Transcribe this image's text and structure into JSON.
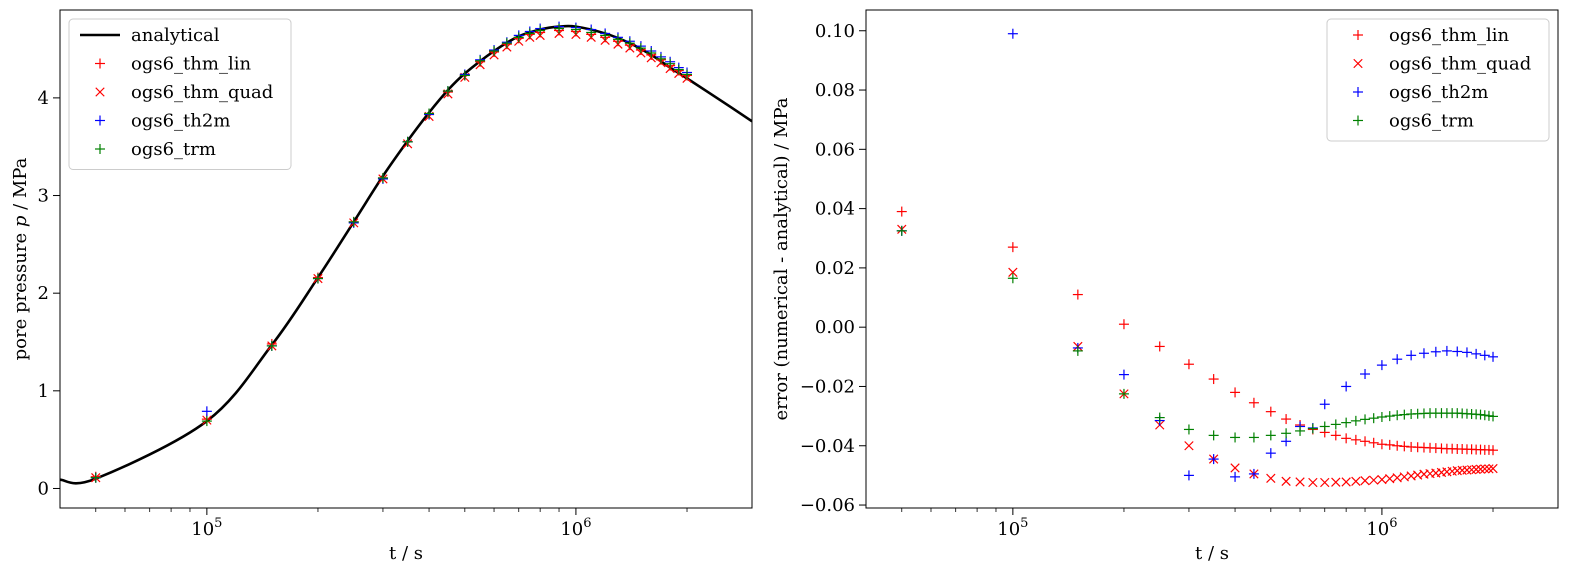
{
  "chart_data": [
    {
      "type": "scatter",
      "xlabel": "t / s",
      "ylabel": "pore pressure p / MPa",
      "ylabel_parts": [
        "pore pressure ",
        "p",
        " / MPa"
      ],
      "xscale": "log",
      "xlim": [
        40000,
        3000000
      ],
      "ylim": [
        -0.2,
        4.9
      ],
      "x_ticks": [
        {
          "value": 100000,
          "base": "10",
          "exp": "5"
        },
        {
          "value": 1000000,
          "base": "10",
          "exp": "6"
        }
      ],
      "y_ticks": [
        {
          "value": 0,
          "label": "0"
        },
        {
          "value": 1,
          "label": "1"
        },
        {
          "value": 2,
          "label": "2"
        },
        {
          "value": 3,
          "label": "3"
        },
        {
          "value": 4,
          "label": "4"
        }
      ],
      "legend_position": "upper-left",
      "analytical": {
        "name": "analytical",
        "color": "#000000",
        "x": [
          40000,
          50000,
          100000,
          150000,
          200000,
          250000,
          300000,
          350000,
          400000,
          450000,
          500000,
          600000,
          700000,
          800000,
          900000,
          1000000,
          1200000,
          1400000,
          1600000,
          1800000,
          2000000,
          2500000,
          3000000
        ],
        "y": [
          0.09,
          0.1,
          0.69,
          1.47,
          2.16,
          2.73,
          3.2,
          3.56,
          3.85,
          4.08,
          4.25,
          4.48,
          4.63,
          4.7,
          4.73,
          4.73,
          4.66,
          4.56,
          4.44,
          4.31,
          4.2,
          3.96,
          3.76
        ]
      },
      "series": [
        {
          "name": "ogs6_thm_lin",
          "marker": "+",
          "color": "#ff0000",
          "x": [
            50000,
            100000,
            150000,
            200000,
            250000,
            300000,
            350000,
            400000,
            450000,
            500000,
            550000,
            600000,
            650000,
            700000,
            750000,
            800000,
            900000,
            1000000,
            1100000,
            1200000,
            1300000,
            1400000,
            1500000,
            1600000,
            1700000,
            1800000,
            1900000,
            2000000
          ],
          "y": [
            0.12,
            0.71,
            1.48,
            2.16,
            2.73,
            3.18,
            3.55,
            3.83,
            4.06,
            4.23,
            4.37,
            4.47,
            4.55,
            4.61,
            4.65,
            4.67,
            4.69,
            4.68,
            4.65,
            4.62,
            4.58,
            4.54,
            4.49,
            4.44,
            4.39,
            4.33,
            4.28,
            4.23
          ]
        },
        {
          "name": "ogs6_thm_quad",
          "marker": "x",
          "color": "#ff0000",
          "x": [
            50000,
            100000,
            150000,
            200000,
            250000,
            300000,
            350000,
            400000,
            450000,
            500000,
            550000,
            600000,
            650000,
            700000,
            750000,
            800000,
            900000,
            1000000,
            1100000,
            1200000,
            1300000,
            1400000,
            1500000,
            1600000,
            1700000,
            1800000,
            1900000,
            2000000
          ],
          "y": [
            0.11,
            0.7,
            1.46,
            2.15,
            2.72,
            3.17,
            3.53,
            3.81,
            4.04,
            4.21,
            4.34,
            4.44,
            4.52,
            4.58,
            4.62,
            4.64,
            4.66,
            4.65,
            4.62,
            4.59,
            4.55,
            4.51,
            4.46,
            4.41,
            4.36,
            4.3,
            4.25,
            4.2
          ]
        },
        {
          "name": "ogs6_th2m",
          "marker": "+",
          "color": "#0000ff",
          "x": [
            50000,
            100000,
            150000,
            200000,
            250000,
            300000,
            350000,
            400000,
            450000,
            500000,
            550000,
            600000,
            650000,
            700000,
            750000,
            800000,
            900000,
            1000000,
            1100000,
            1200000,
            1300000,
            1400000,
            1500000,
            1600000,
            1700000,
            1800000,
            1900000,
            2000000
          ],
          "y": [
            0.11,
            0.79,
            1.46,
            2.15,
            2.72,
            3.17,
            3.55,
            3.83,
            4.07,
            4.24,
            4.39,
            4.49,
            4.57,
            4.64,
            4.68,
            4.71,
            4.73,
            4.72,
            4.7,
            4.66,
            4.62,
            4.58,
            4.53,
            4.48,
            4.42,
            4.37,
            4.31,
            4.26
          ]
        },
        {
          "name": "ogs6_trm",
          "marker": "+",
          "color": "#008000",
          "x": [
            50000,
            100000,
            150000,
            200000,
            250000,
            300000,
            350000,
            400000,
            450000,
            500000,
            550000,
            600000,
            650000,
            700000,
            750000,
            800000,
            900000,
            1000000,
            1100000,
            1200000,
            1300000,
            1400000,
            1500000,
            1600000,
            1700000,
            1800000,
            1900000,
            2000000
          ],
          "y": [
            0.11,
            0.69,
            1.46,
            2.15,
            2.73,
            3.18,
            3.55,
            3.84,
            4.07,
            4.23,
            4.38,
            4.48,
            4.56,
            4.62,
            4.66,
            4.69,
            4.71,
            4.7,
            4.67,
            4.64,
            4.6,
            4.56,
            4.51,
            4.46,
            4.4,
            4.35,
            4.29,
            4.24
          ]
        }
      ]
    },
    {
      "type": "scatter",
      "xlabel": "t / s",
      "ylabel": "error (numerical - analytical) / MPa",
      "xscale": "log",
      "xlim": [
        40000,
        3000000
      ],
      "ylim": [
        -0.061,
        0.107
      ],
      "x_ticks": [
        {
          "value": 100000,
          "base": "10",
          "exp": "5"
        },
        {
          "value": 1000000,
          "base": "10",
          "exp": "6"
        }
      ],
      "y_ticks": [
        {
          "value": -0.06,
          "label": "−0.06"
        },
        {
          "value": -0.04,
          "label": "−0.04"
        },
        {
          "value": -0.02,
          "label": "−0.02"
        },
        {
          "value": 0,
          "label": "0.00"
        },
        {
          "value": 0.02,
          "label": "0.02"
        },
        {
          "value": 0.04,
          "label": "0.04"
        },
        {
          "value": 0.06,
          "label": "0.06"
        },
        {
          "value": 0.08,
          "label": "0.08"
        },
        {
          "value": 0.1,
          "label": "0.10"
        }
      ],
      "legend_position": "upper-right",
      "series": [
        {
          "name": "ogs6_thm_lin",
          "marker": "+",
          "color": "#ff0000",
          "x": [
            50000,
            100000,
            150000,
            200000,
            250000,
            300000,
            350000,
            400000,
            450000,
            500000,
            550000,
            600000,
            650000,
            700000,
            750000,
            800000,
            850000,
            900000,
            950000,
            1000000,
            1050000,
            1100000,
            1150000,
            1200000,
            1250000,
            1300000,
            1350000,
            1400000,
            1450000,
            1500000,
            1550000,
            1600000,
            1650000,
            1700000,
            1750000,
            1800000,
            1850000,
            1900000,
            1950000,
            2000000
          ],
          "y": [
            0.039,
            0.027,
            0.011,
            0.001,
            -0.0065,
            -0.0125,
            -0.0175,
            -0.022,
            -0.0255,
            -0.0285,
            -0.031,
            -0.033,
            -0.0345,
            -0.0355,
            -0.0365,
            -0.0375,
            -0.038,
            -0.0385,
            -0.039,
            -0.0395,
            -0.0397,
            -0.04,
            -0.0402,
            -0.0404,
            -0.0405,
            -0.0406,
            -0.0407,
            -0.0408,
            -0.0409,
            -0.041,
            -0.041,
            -0.0411,
            -0.0411,
            -0.0412,
            -0.0412,
            -0.0413,
            -0.0413,
            -0.0414,
            -0.0414,
            -0.0415
          ]
        },
        {
          "name": "ogs6_thm_quad",
          "marker": "x",
          "color": "#ff0000",
          "x": [
            50000,
            100000,
            150000,
            200000,
            250000,
            300000,
            350000,
            400000,
            450000,
            500000,
            550000,
            600000,
            650000,
            700000,
            750000,
            800000,
            850000,
            900000,
            950000,
            1000000,
            1050000,
            1100000,
            1150000,
            1200000,
            1250000,
            1300000,
            1350000,
            1400000,
            1450000,
            1500000,
            1550000,
            1600000,
            1650000,
            1700000,
            1750000,
            1800000,
            1850000,
            1900000,
            1950000,
            2000000
          ],
          "y": [
            0.033,
            0.0185,
            -0.0065,
            -0.0225,
            -0.033,
            -0.04,
            -0.0445,
            -0.0475,
            -0.0495,
            -0.051,
            -0.052,
            -0.0522,
            -0.0524,
            -0.0524,
            -0.0523,
            -0.0522,
            -0.052,
            -0.0518,
            -0.0516,
            -0.0514,
            -0.0511,
            -0.0508,
            -0.0505,
            -0.0502,
            -0.0499,
            -0.0496,
            -0.0494,
            -0.0492,
            -0.049,
            -0.0488,
            -0.0486,
            -0.0484,
            -0.0483,
            -0.0482,
            -0.0481,
            -0.048,
            -0.0479,
            -0.0478,
            -0.0478,
            -0.0477
          ]
        },
        {
          "name": "ogs6_th2m",
          "marker": "+",
          "color": "#0000ff",
          "x": [
            50000,
            100000,
            150000,
            200000,
            250000,
            300000,
            350000,
            400000,
            450000,
            500000,
            550000,
            600000,
            650000,
            700000,
            800000,
            900000,
            1000000,
            1100000,
            1200000,
            1300000,
            1400000,
            1500000,
            1600000,
            1700000,
            1800000,
            1900000,
            2000000
          ],
          "y": [
            0.0325,
            0.099,
            -0.007,
            -0.016,
            -0.0315,
            -0.05,
            -0.0445,
            -0.0505,
            -0.0495,
            -0.0425,
            -0.0385,
            -0.0335,
            -0.034,
            -0.026,
            -0.02,
            -0.0158,
            -0.0128,
            -0.0108,
            -0.0095,
            -0.0088,
            -0.0083,
            -0.008,
            -0.0082,
            -0.0085,
            -0.009,
            -0.0095,
            -0.01
          ]
        },
        {
          "name": "ogs6_trm",
          "marker": "+",
          "color": "#008000",
          "x": [
            50000,
            100000,
            150000,
            200000,
            250000,
            300000,
            350000,
            400000,
            450000,
            500000,
            550000,
            600000,
            650000,
            700000,
            750000,
            800000,
            850000,
            900000,
            950000,
            1000000,
            1050000,
            1100000,
            1150000,
            1200000,
            1250000,
            1300000,
            1350000,
            1400000,
            1450000,
            1500000,
            1550000,
            1600000,
            1650000,
            1700000,
            1750000,
            1800000,
            1850000,
            1900000,
            1950000,
            2000000
          ],
          "y": [
            0.0325,
            0.0165,
            -0.008,
            -0.0225,
            -0.0305,
            -0.0345,
            -0.0365,
            -0.0372,
            -0.0372,
            -0.0365,
            -0.0358,
            -0.035,
            -0.0342,
            -0.0335,
            -0.0328,
            -0.0322,
            -0.0316,
            -0.0311,
            -0.0307,
            -0.0303,
            -0.03,
            -0.0297,
            -0.0295,
            -0.0293,
            -0.0292,
            -0.0291,
            -0.029,
            -0.029,
            -0.029,
            -0.029,
            -0.029,
            -0.029,
            -0.0291,
            -0.0292,
            -0.0293,
            -0.0294,
            -0.0295,
            -0.0297,
            -0.0299,
            -0.0301
          ]
        }
      ]
    }
  ]
}
